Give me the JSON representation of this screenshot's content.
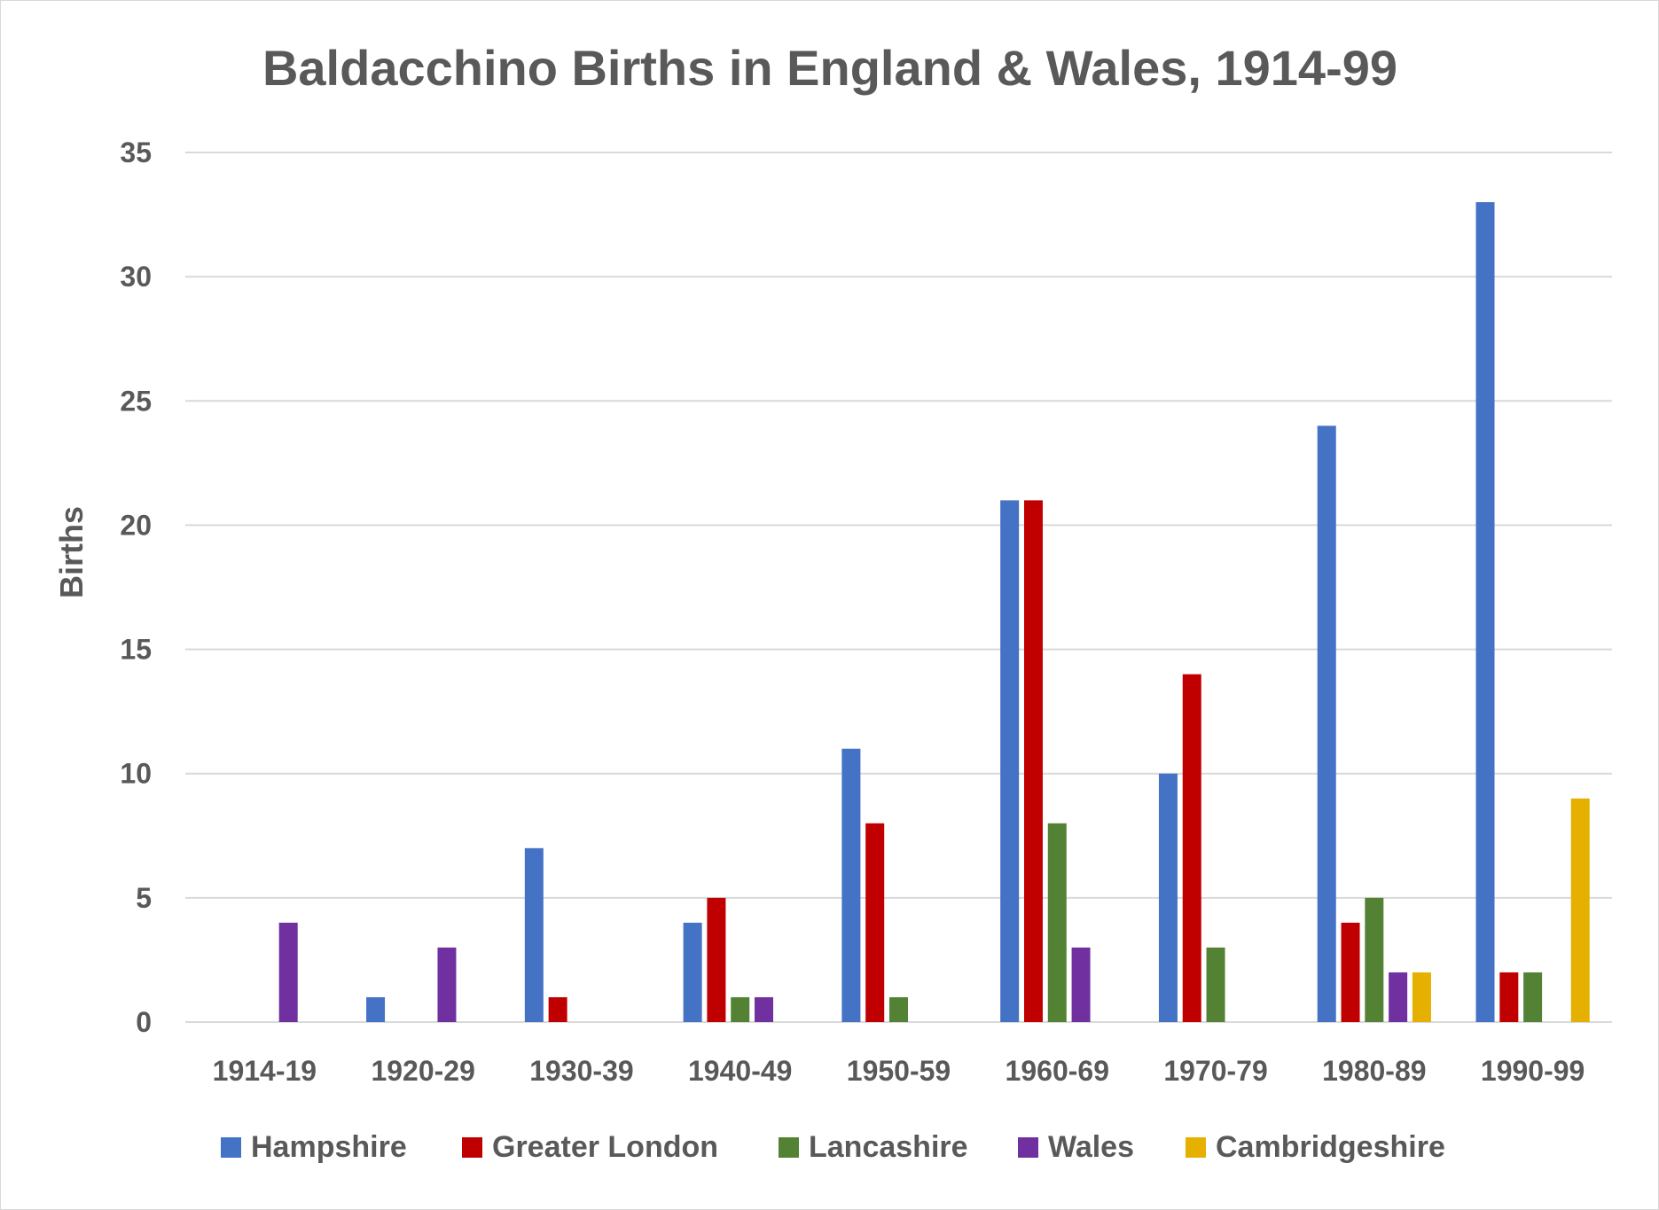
{
  "chart_data": {
    "type": "bar",
    "title": "Baldacchino Births in England & Wales, 1914-99",
    "ylabel": "Births",
    "xlabel": "",
    "ylim": [
      0,
      35
    ],
    "yticks": [
      0,
      5,
      10,
      15,
      20,
      25,
      30,
      35
    ],
    "grid": true,
    "legend_position": "bottom",
    "categories": [
      "1914-19",
      "1920-29",
      "1930-39",
      "1940-49",
      "1950-59",
      "1960-69",
      "1970-79",
      "1980-89",
      "1990-99"
    ],
    "series": [
      {
        "name": "Hampshire",
        "color": "#4472c4",
        "values": [
          0,
          1,
          7,
          4,
          11,
          21,
          10,
          24,
          33
        ]
      },
      {
        "name": "Greater London",
        "color": "#c00000",
        "values": [
          0,
          0,
          1,
          5,
          8,
          21,
          14,
          4,
          2
        ]
      },
      {
        "name": "Lancashire",
        "color": "#548235",
        "values": [
          0,
          0,
          0,
          1,
          1,
          8,
          3,
          5,
          2
        ]
      },
      {
        "name": "Wales",
        "color": "#7030a0",
        "values": [
          4,
          3,
          0,
          1,
          0,
          3,
          0,
          2,
          0
        ]
      },
      {
        "name": "Cambridgeshire",
        "color": "#e6b000",
        "values": [
          0,
          0,
          0,
          0,
          0,
          0,
          0,
          2,
          9
        ]
      }
    ]
  }
}
